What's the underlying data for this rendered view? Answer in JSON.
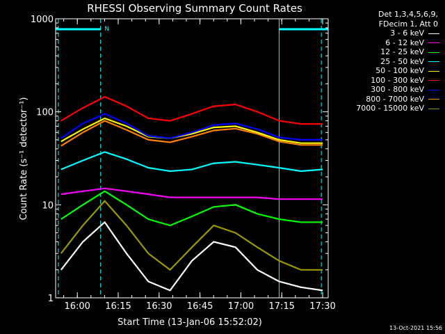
{
  "chart_data": {
    "type": "line",
    "title": "RHESSI Observing Summary Count Rates",
    "xlabel": "Start Time (13-Jan-06 15:52:02)",
    "ylabel": "Count Rate (s⁻¹ detector⁻¹)",
    "yscale": "log",
    "ylim": [
      1,
      1000
    ],
    "xlim_minutes_after_start": [
      0,
      100
    ],
    "x_tick_labels": [
      "16:00",
      "16:15",
      "16:30",
      "16:45",
      "17:00",
      "17:15",
      "17:30"
    ],
    "y_tick_labels": [
      "1",
      "10",
      "100",
      "1000"
    ],
    "legend_header": [
      "Det 1,3,4,5,6,9,",
      "FDecim 1, Att 0"
    ],
    "legend_placement": "right, outside plot",
    "marker_label": "N",
    "series": [
      {
        "name": "3 - 6 keV",
        "color": "#ffffff",
        "x": [
          2,
          10,
          18,
          26,
          34,
          42,
          50,
          58,
          66,
          74,
          82,
          90,
          98
        ],
        "y": [
          2,
          4,
          6.5,
          3,
          1.5,
          1.2,
          2.5,
          4,
          3.5,
          2,
          1.5,
          1.3,
          1.2
        ]
      },
      {
        "name": "6 - 12 keV",
        "color": "#ff00ff",
        "x": [
          2,
          10,
          18,
          26,
          34,
          42,
          50,
          58,
          66,
          74,
          82,
          90,
          98
        ],
        "y": [
          13,
          14,
          15,
          14,
          13,
          12,
          12,
          12,
          12,
          12,
          11.5,
          11.5,
          11.5
        ]
      },
      {
        "name": "12 - 25 keV",
        "color": "#00ff00",
        "x": [
          2,
          10,
          18,
          26,
          34,
          42,
          50,
          58,
          66,
          74,
          82,
          90,
          98
        ],
        "y": [
          7,
          10,
          14,
          10,
          7,
          6,
          7.5,
          9.5,
          10,
          8,
          7,
          6.5,
          6.5
        ]
      },
      {
        "name": "25 - 50 keV",
        "color": "#00ffff",
        "x": [
          2,
          10,
          18,
          26,
          34,
          42,
          50,
          58,
          66,
          74,
          82,
          90,
          98
        ],
        "y": [
          24,
          30,
          37,
          31,
          25,
          23,
          24,
          28,
          29,
          27,
          25,
          23,
          24
        ]
      },
      {
        "name": "50 - 100 keV",
        "color": "#ffff00",
        "x": [
          2,
          10,
          18,
          26,
          34,
          42,
          50,
          58,
          66,
          74,
          82,
          90,
          98
        ],
        "y": [
          48,
          65,
          85,
          70,
          54,
          52,
          58,
          68,
          70,
          60,
          50,
          46,
          46
        ]
      },
      {
        "name": "100 - 300 keV",
        "color": "#ff0000",
        "x": [
          2,
          10,
          18,
          26,
          34,
          42,
          50,
          58,
          66,
          74,
          82,
          90,
          98
        ],
        "y": [
          80,
          110,
          145,
          115,
          85,
          80,
          95,
          115,
          120,
          100,
          80,
          74,
          74
        ]
      },
      {
        "name": "300 - 800 keV",
        "color": "#0000ff",
        "x": [
          2,
          10,
          18,
          26,
          34,
          42,
          50,
          58,
          66,
          74,
          82,
          90,
          98
        ],
        "y": [
          52,
          75,
          95,
          75,
          55,
          52,
          60,
          72,
          75,
          65,
          53,
          50,
          50
        ]
      },
      {
        "name": "800 - 7000 keV",
        "color": "#ff8000",
        "x": [
          2,
          10,
          18,
          26,
          34,
          42,
          50,
          58,
          66,
          74,
          82,
          90,
          98
        ],
        "y": [
          43,
          60,
          80,
          64,
          50,
          47,
          54,
          63,
          66,
          58,
          48,
          44,
          44
        ]
      },
      {
        "name": "7000 - 15000 keV",
        "color": "#9a9a00",
        "x": [
          2,
          10,
          18,
          26,
          34,
          42,
          50,
          58,
          66,
          74,
          82,
          90,
          98
        ],
        "y": [
          3,
          6,
          11,
          6,
          3,
          2,
          3.5,
          6,
          5,
          3.5,
          2.5,
          2,
          2
        ]
      }
    ]
  },
  "footer": {
    "timestamp": "13-Oct-2021 15:56"
  }
}
